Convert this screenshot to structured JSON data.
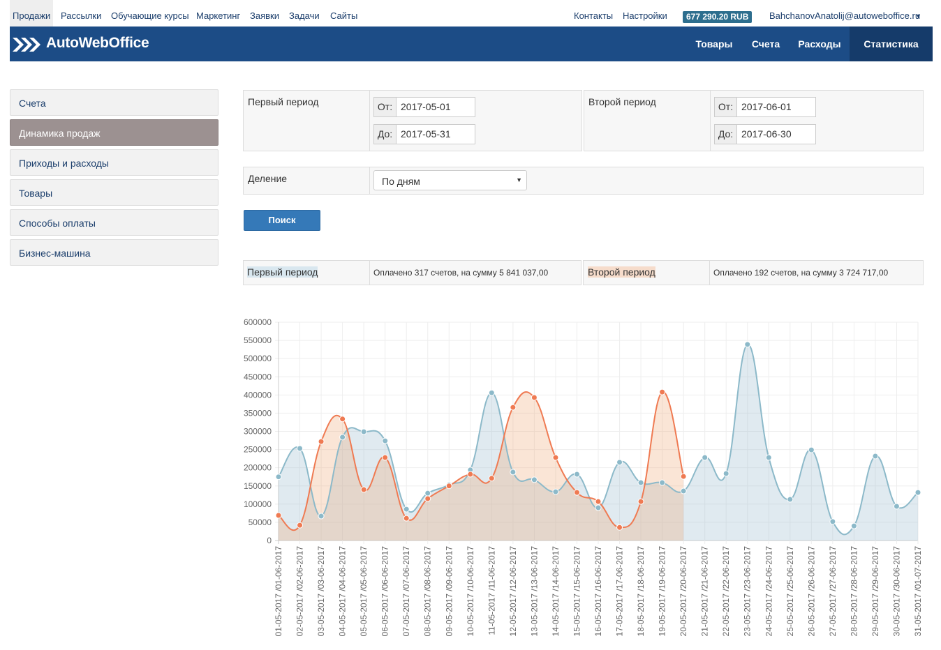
{
  "top_nav": {
    "items": [
      "Продажи",
      "Рассылки",
      "Обучающие курсы",
      "Маркетинг",
      "Заявки",
      "Задачи",
      "Сайты"
    ],
    "links": [
      "Контакты",
      "Настройки"
    ],
    "balance": "677 290.20 RUB",
    "user": "BahchanovAnatolij@autoweboffice.ru"
  },
  "header": {
    "logo": "AutoWebOffice",
    "menu": [
      "Товары",
      "Счета",
      "Расходы",
      "Статистика"
    ]
  },
  "sidebar": [
    "Счета",
    "Динамика продаж",
    "Приходы и расходы",
    "Товары",
    "Способы оплаты",
    "Бизнес-машина"
  ],
  "form": {
    "period1": {
      "label": "Первый период",
      "from_label": "От:",
      "from": "2017-05-01",
      "to_label": "До:",
      "to": "2017-05-31"
    },
    "period2": {
      "label": "Второй период",
      "from_label": "От:",
      "from": "2017-06-01",
      "to_label": "До:",
      "to": "2017-06-30"
    },
    "division": {
      "label": "Деление",
      "value": "По дням"
    },
    "search": "Поиск"
  },
  "results": {
    "period1": {
      "label": "Первый период",
      "text": "Оплачено 317 счетов, на сумму 5 841 037,00"
    },
    "period2": {
      "label": "Второй период",
      "text": "Оплачено 192 счетов, на сумму 3 724 717,00"
    }
  },
  "chart_data": {
    "type": "line",
    "categories": [
      "01-05-2017 /01-06-2017",
      "02-05-2017 /02-06-2017",
      "03-05-2017 /03-06-2017",
      "04-05-2017 /04-06-2017",
      "05-05-2017 /05-06-2017",
      "06-05-2017 /06-06-2017",
      "07-05-2017 /07-06-2017",
      "08-05-2017 /08-06-2017",
      "09-05-2017 /09-06-2017",
      "10-05-2017 /10-06-2017",
      "11-05-2017 /11-06-2017",
      "12-05-2017 /12-06-2017",
      "13-05-2017 /13-06-2017",
      "14-05-2017 /14-06-2017",
      "15-05-2017 /15-06-2017",
      "16-05-2017 /16-06-2017",
      "17-05-2017 /17-06-2017",
      "18-05-2017 /18-06-2017",
      "19-05-2017 /19-06-2017",
      "20-05-2017 /20-06-2017",
      "21-05-2017 /21-06-2017",
      "22-05-2017 /22-06-2017",
      "23-05-2017 /23-06-2017",
      "24-05-2017 /24-06-2017",
      "25-05-2017 /25-06-2017",
      "26-05-2017 /26-06-2017",
      "27-05-2017 /27-06-2017",
      "28-05-2017 /28-06-2017",
      "29-05-2017 /29-06-2017",
      "30-05-2017 /30-06-2017",
      "31-05-2017 /01-07-2017"
    ],
    "series": [
      {
        "color": "#8cb9c9",
        "fill": "rgba(151,187,205,0.3)",
        "values": [
          175000,
          253000,
          67000,
          284000,
          299000,
          274000,
          86000,
          130000,
          153000,
          194000,
          406000,
          188000,
          167000,
          134000,
          182000,
          90000,
          215000,
          159000,
          159000,
          136000,
          228000,
          184000,
          539000,
          228000,
          113000,
          249000,
          52000,
          40000,
          232000,
          94000,
          132000
        ]
      },
      {
        "color": "#ef7a52",
        "fill": "rgba(240,170,120,0.3)",
        "values": [
          69000,
          42000,
          272000,
          334000,
          140000,
          228000,
          61000,
          115000,
          150000,
          182000,
          171000,
          366000,
          393000,
          228000,
          132000,
          107000,
          36000,
          107000,
          408000,
          176000,
          null,
          null,
          null,
          null,
          null,
          null,
          null,
          null,
          null,
          null,
          null
        ]
      }
    ],
    "ylim": [
      0,
      600000
    ],
    "yticks": [
      0,
      50000,
      100000,
      150000,
      200000,
      250000,
      300000,
      350000,
      400000,
      450000,
      500000,
      550000,
      600000
    ],
    "grid": true
  }
}
